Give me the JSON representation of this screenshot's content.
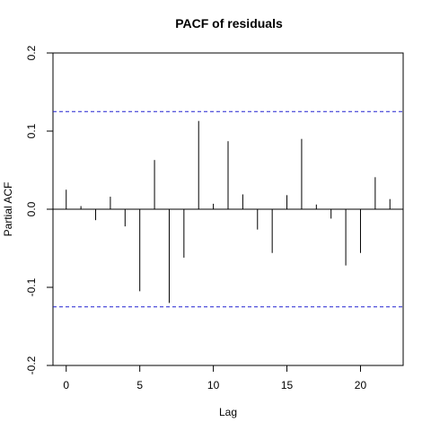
{
  "chart_data": {
    "type": "bar",
    "title": "PACF of residuals",
    "xlabel": "Lag",
    "ylabel": "Partial ACF",
    "xlim": [
      -0.9,
      22.9
    ],
    "ylim": [
      -0.2,
      0.2
    ],
    "x_ticks": [
      0,
      5,
      10,
      15,
      20
    ],
    "x_tick_labels": [
      "0",
      "5",
      "10",
      "15",
      "20"
    ],
    "y_ticks": [
      -0.2,
      -0.1,
      0.0,
      0.1,
      0.2
    ],
    "y_tick_labels": [
      "-0.2",
      "-0.1",
      "0.0",
      "0.1",
      "0.2"
    ],
    "grid": false,
    "lags": [
      0,
      1,
      2,
      3,
      4,
      5,
      6,
      7,
      8,
      9,
      10,
      11,
      12,
      13,
      14,
      15,
      16,
      17,
      18,
      19,
      20,
      21,
      22
    ],
    "values": [
      0.025,
      0.004,
      -0.014,
      0.016,
      -0.022,
      -0.105,
      0.063,
      -0.12,
      -0.062,
      0.113,
      0.007,
      0.087,
      0.019,
      -0.026,
      -0.056,
      0.018,
      0.09,
      0.006,
      -0.012,
      -0.072,
      -0.056,
      0.041,
      0.013
    ],
    "confidence_limits": [
      0.125,
      -0.125
    ],
    "colors": {
      "bars": "#000000",
      "confidence_line": "#2020d0",
      "axis": "#000000"
    }
  }
}
